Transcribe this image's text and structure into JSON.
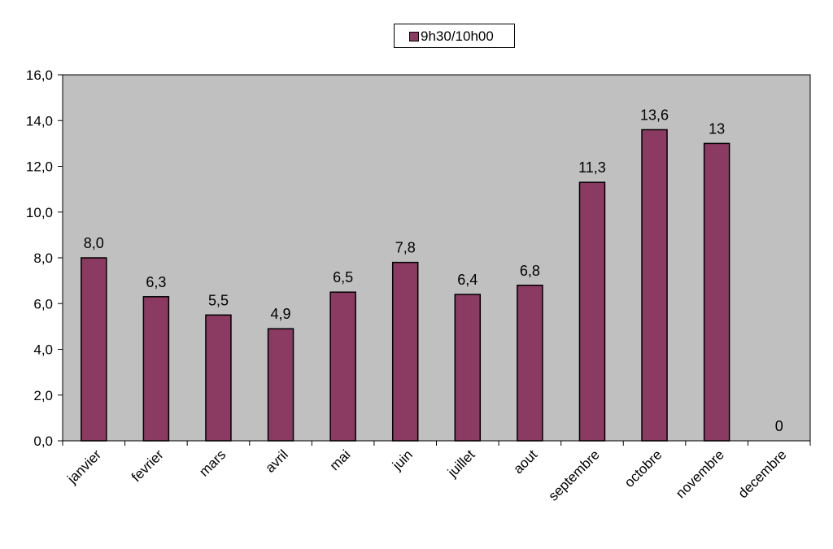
{
  "chart_data": {
    "type": "bar",
    "title": "",
    "xlabel": "",
    "ylabel": "",
    "categories": [
      "janvier",
      "fevrier",
      "mars",
      "avril",
      "mai",
      "juin",
      "juillet",
      "aout",
      "septembre",
      "octobre",
      "novembre",
      "decembre"
    ],
    "series": [
      {
        "name": "9h30/10h00",
        "values": [
          8.0,
          6.3,
          5.5,
          4.9,
          6.5,
          7.8,
          6.4,
          6.8,
          11.3,
          13.6,
          13.0,
          0
        ],
        "data_labels": [
          "8,0",
          "6,3",
          "5,5",
          "4,9",
          "6,5",
          "7,8",
          "6,4",
          "6,8",
          "11,3",
          "13,6",
          "13",
          "0"
        ],
        "color": "#8b3a62"
      }
    ],
    "ylim": [
      0,
      16
    ],
    "yticks": [
      0,
      2,
      4,
      6,
      8,
      10,
      12,
      14,
      16
    ],
    "ytick_labels": [
      "0,0",
      "2,0",
      "4,0",
      "6,0",
      "8,0",
      "10,0",
      "12,0",
      "14,0",
      "16,0"
    ],
    "grid": false,
    "plot_background": "#c0c0c0",
    "legend": {
      "position": "top-center"
    }
  }
}
